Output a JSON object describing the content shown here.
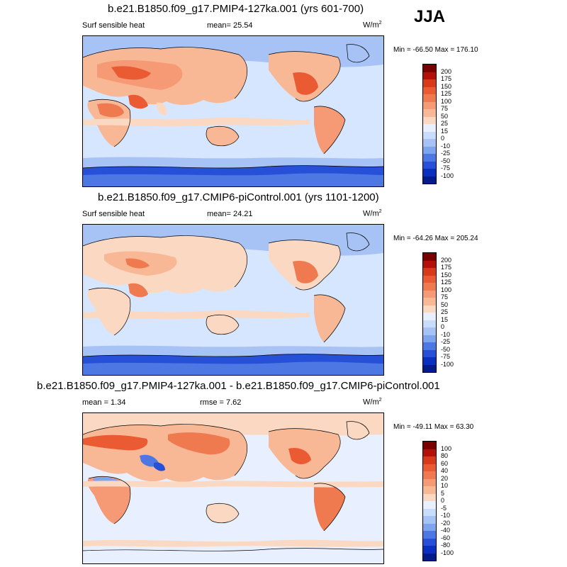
{
  "season": "JJA",
  "panels": [
    {
      "title": "b.e21.B1850.f09_g17.PMIP4-127ka.001 (yrs 601-700)",
      "left_label": "Surf sensible heat",
      "mid_label": "mean=  25.54",
      "unit": "W/m",
      "unit_sup": "2",
      "minmax": "Min = -66.50 Max = 176.10",
      "colorbar": {
        "labels": [
          "200",
          "175",
          "150",
          "125",
          "100",
          "75",
          "50",
          "25",
          "15",
          "0",
          "-10",
          "-25",
          "-50",
          "-75",
          "-100"
        ],
        "colors": [
          "#7a0000",
          "#b3100a",
          "#d8391b",
          "#ea5b34",
          "#f07a50",
          "#f59a74",
          "#f8b896",
          "#fbd8c2",
          "#e8f0ff",
          "#c8dcfb",
          "#a7c3f5",
          "#7ea4ee",
          "#4d78e4",
          "#2650d8",
          "#0b2fbe",
          "#031c8a"
        ]
      }
    },
    {
      "title": "b.e21.B1850.f09_g17.CMIP6-piControl.001 (yrs 1101-1200)",
      "left_label": "Surf sensible heat",
      "mid_label": "mean=  24.21",
      "unit": "W/m",
      "unit_sup": "2",
      "minmax": "Min = -64.26 Max = 205.24",
      "colorbar": {
        "labels": [
          "200",
          "175",
          "150",
          "125",
          "100",
          "75",
          "50",
          "25",
          "15",
          "0",
          "-10",
          "-25",
          "-50",
          "-75",
          "-100"
        ],
        "colors": [
          "#7a0000",
          "#b3100a",
          "#d8391b",
          "#ea5b34",
          "#f07a50",
          "#f59a74",
          "#f8b896",
          "#fbd8c2",
          "#e8f0ff",
          "#c8dcfb",
          "#a7c3f5",
          "#7ea4ee",
          "#4d78e4",
          "#2650d8",
          "#0b2fbe",
          "#031c8a"
        ]
      }
    },
    {
      "title": "b.e21.B1850.f09_g17.PMIP4-127ka.001 - b.e21.B1850.f09_g17.CMIP6-piControl.001",
      "left_label": "mean =  1.34",
      "mid_label": "rmse =  7.62",
      "unit": "W/m",
      "unit_sup": "2",
      "minmax": "Min = -49.11 Max =  63.30",
      "colorbar": {
        "labels": [
          "100",
          "80",
          "60",
          "40",
          "20",
          "10",
          "5",
          "0",
          "-5",
          "-10",
          "-20",
          "-40",
          "-60",
          "-80",
          "-100"
        ],
        "colors": [
          "#7a0000",
          "#b3100a",
          "#d8391b",
          "#ea5b34",
          "#f07a50",
          "#f59a74",
          "#f8b896",
          "#fbd8c2",
          "#e8f0ff",
          "#c8dcfb",
          "#a7c3f5",
          "#7ea4ee",
          "#4d78e4",
          "#2650d8",
          "#0b2fbe",
          "#031c8a"
        ]
      }
    }
  ]
}
